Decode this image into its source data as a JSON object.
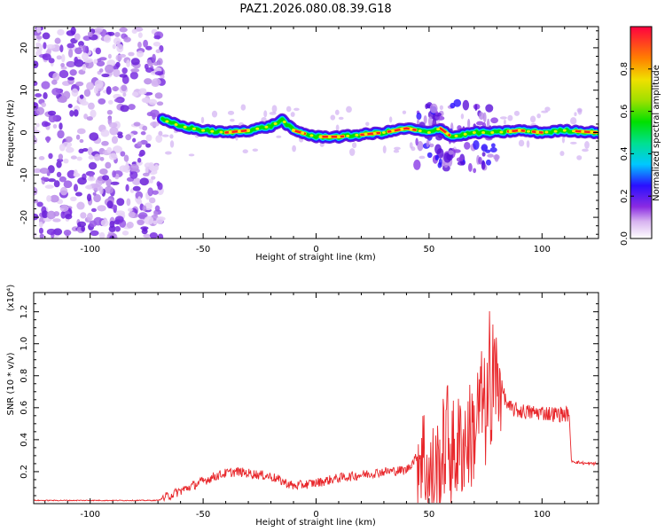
{
  "title": "PAZ1.2026.080.08.39.G18",
  "chart_data": [
    {
      "type": "heatmap",
      "title": "PAZ1.2026.080.08.39.G18",
      "xlabel": "Height of straight line (km)",
      "ylabel": "Frequency (Hz)",
      "xlim": [
        -125,
        125
      ],
      "ylim": [
        -25,
        25
      ],
      "x_ticks": [
        "-100",
        "-50",
        "0",
        "50",
        "100"
      ],
      "y_ticks": [
        "-20",
        "-10",
        "0",
        "10",
        "20"
      ],
      "colorbar": {
        "label": "Normalized spectral amplitude",
        "range": [
          0,
          1
        ],
        "ticks": [
          "0.0",
          "0.2",
          "0.4",
          "0.6",
          "0.8"
        ]
      },
      "ridge": {
        "x": [
          -68,
          -60,
          -50,
          -40,
          -30,
          -20,
          -15,
          -10,
          0,
          10,
          20,
          30,
          40,
          45,
          50,
          55,
          60,
          70,
          80,
          90,
          100,
          110,
          125
        ],
        "freq_hz": [
          3,
          1.5,
          0.5,
          0,
          0.5,
          1.5,
          3,
          0.5,
          -1,
          -1,
          -0.5,
          0,
          1,
          0.5,
          0,
          1,
          -1,
          0,
          0,
          0.5,
          0,
          0.5,
          0
        ]
      }
    },
    {
      "type": "line",
      "xlabel": "Height of straight line (km)",
      "ylabel": "SNR (10 * v/v)",
      "y_multiplier": "(x10⁴)",
      "xlim": [
        -125,
        125
      ],
      "ylim": [
        0,
        1.32
      ],
      "x_ticks": [
        "-100",
        "-50",
        "0",
        "50",
        "100"
      ],
      "y_ticks": [
        "0.2",
        "0.4",
        "0.6",
        "0.8",
        "1.0",
        "1.2"
      ],
      "series": [
        {
          "name": "SNR",
          "color": "#e8262a",
          "x": [
            -125,
            -70,
            -65,
            -60,
            -55,
            -50,
            -45,
            -40,
            -35,
            -30,
            -25,
            -20,
            -15,
            -10,
            -5,
            0,
            10,
            20,
            30,
            40,
            45,
            47,
            50,
            55,
            58,
            60,
            65,
            70,
            73,
            75,
            78,
            80,
            85,
            90,
            95,
            100,
            105,
            110,
            112,
            113,
            115,
            120,
            125
          ],
          "values": [
            0.02,
            0.02,
            0.05,
            0.08,
            0.11,
            0.14,
            0.17,
            0.19,
            0.2,
            0.19,
            0.18,
            0.17,
            0.14,
            0.11,
            0.12,
            0.13,
            0.16,
            0.18,
            0.2,
            0.21,
            0.3,
            0.34,
            0.15,
            0.22,
            0.45,
            0.3,
            0.38,
            0.45,
            0.65,
            0.55,
            0.75,
            0.82,
            0.6,
            0.58,
            0.57,
            0.57,
            0.56,
            0.56,
            0.56,
            0.27,
            0.26,
            0.25,
            0.25
          ]
        }
      ]
    }
  ]
}
